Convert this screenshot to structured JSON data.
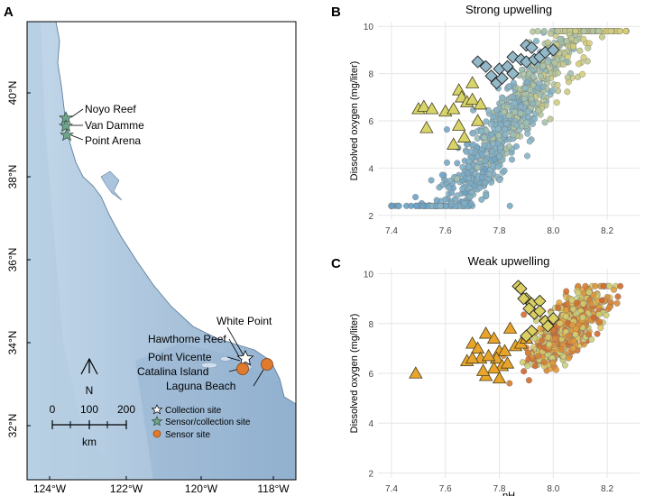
{
  "panel_a": {
    "letter": "A",
    "lat_ticks": [
      "40°N",
      "38°N",
      "36°N",
      "34°N",
      "32°N"
    ],
    "lon_ticks": [
      "124°W",
      "122°W",
      "120°W",
      "118°W"
    ],
    "sites_north": [
      "Noyo Reef",
      "Van Damme",
      "Point Arena"
    ],
    "sites_south": [
      "White Point",
      "Hawthorne Reef",
      "Point Vicente",
      "Catalina Island",
      "Laguna Beach"
    ],
    "north_arrow": "N",
    "scale_ticks": [
      "0",
      "100",
      "200"
    ],
    "scale_unit": "km",
    "legend": [
      {
        "label": "Collection site",
        "symbol": "white-star",
        "color": "#ffffff"
      },
      {
        "label": "Sensor/collection site",
        "symbol": "green-star",
        "color": "#6fa58a"
      },
      {
        "label": "Sensor site",
        "symbol": "orange-circle",
        "color": "#e07a2c"
      }
    ],
    "colors": {
      "ocean": "#a9c4dc",
      "land": "#ffffff",
      "coast": "#5f7f9e"
    }
  },
  "chart_data": [
    {
      "letter": "B",
      "type": "scatter",
      "title": "Strong upwelling",
      "xlabel": "",
      "ylabel": "Dissolved oxygen (mg/liter)",
      "xlim": [
        7.35,
        8.32
      ],
      "ylim": [
        1.8,
        10.2
      ],
      "xticks": [
        "7.4",
        "7.6",
        "7.8",
        "8.0",
        "8.2"
      ],
      "yticks": [
        "2",
        "4",
        "6",
        "8",
        "10"
      ],
      "grid": true,
      "cloud": {
        "x_center": 7.85,
        "x_spread": 0.33,
        "slope": 15.5,
        "intercept": -115.5,
        "noise": 0.9,
        "count": 900
      },
      "triangles": [
        [
          7.5,
          6.5
        ],
        [
          7.52,
          6.6
        ],
        [
          7.55,
          6.5
        ],
        [
          7.53,
          5.7
        ],
        [
          7.6,
          6.4
        ],
        [
          7.63,
          6.5
        ],
        [
          7.65,
          7.3
        ],
        [
          7.66,
          7.0
        ],
        [
          7.68,
          6.8
        ],
        [
          7.7,
          6.9
        ],
        [
          7.65,
          5.8
        ],
        [
          7.67,
          5.3
        ],
        [
          7.63,
          5.0
        ],
        [
          7.72,
          6.0
        ],
        [
          7.73,
          6.7
        ],
        [
          7.7,
          7.6
        ]
      ],
      "diamonds": [
        [
          7.75,
          8.3
        ],
        [
          7.72,
          8.5
        ],
        [
          7.77,
          7.9
        ],
        [
          7.8,
          8.2
        ],
        [
          7.83,
          8.3
        ],
        [
          7.85,
          8.7
        ],
        [
          7.88,
          8.6
        ],
        [
          7.9,
          8.5
        ],
        [
          7.93,
          8.6
        ],
        [
          7.9,
          9.2
        ],
        [
          7.92,
          9.1
        ],
        [
          7.95,
          8.7
        ],
        [
          7.97,
          8.9
        ],
        [
          8.0,
          9.0
        ],
        [
          7.85,
          8.0
        ],
        [
          7.79,
          7.6
        ],
        [
          7.81,
          7.8
        ]
      ]
    },
    {
      "letter": "C",
      "type": "scatter",
      "title": "Weak upwelling",
      "xlabel": "pH",
      "ylabel": "Dissolved oxygen (mg/liter)",
      "xlim": [
        7.35,
        8.32
      ],
      "ylim": [
        1.8,
        10.2
      ],
      "xticks": [
        "7.4",
        "7.6",
        "7.8",
        "8.0",
        "8.2"
      ],
      "yticks": [
        "2",
        "4",
        "6",
        "8",
        "10"
      ],
      "grid": true,
      "cloud": {
        "x_center": 8.05,
        "x_spread": 0.13,
        "slope": 8.0,
        "intercept": -56.6,
        "noise": 0.55,
        "count": 650
      },
      "triangles": [
        [
          7.49,
          6.0
        ],
        [
          7.68,
          6.5
        ],
        [
          7.7,
          7.2
        ],
        [
          7.72,
          7.0
        ],
        [
          7.73,
          6.6
        ],
        [
          7.75,
          5.9
        ],
        [
          7.75,
          7.6
        ],
        [
          7.78,
          7.4
        ],
        [
          7.8,
          6.9
        ],
        [
          7.79,
          6.6
        ],
        [
          7.81,
          6.3
        ],
        [
          7.82,
          6.9
        ],
        [
          7.83,
          6.4
        ],
        [
          7.86,
          7.1
        ],
        [
          7.88,
          7.2
        ],
        [
          7.9,
          7.4
        ],
        [
          7.84,
          7.8
        ],
        [
          7.78,
          6.2
        ],
        [
          7.76,
          6.7
        ],
        [
          7.7,
          6.6
        ],
        [
          7.74,
          6.1
        ],
        [
          7.8,
          5.8
        ]
      ],
      "diamonds": [
        [
          7.87,
          9.5
        ],
        [
          7.88,
          9.4
        ],
        [
          7.9,
          9.0
        ],
        [
          7.92,
          8.8
        ],
        [
          7.93,
          8.4
        ],
        [
          7.95,
          8.9
        ],
        [
          7.97,
          8.1
        ],
        [
          7.98,
          7.9
        ],
        [
          8.0,
          8.2
        ],
        [
          7.95,
          8.5
        ],
        [
          7.92,
          7.7
        ],
        [
          7.9,
          7.5
        ],
        [
          7.91,
          8.6
        ],
        [
          7.89,
          9.0
        ]
      ]
    }
  ]
}
